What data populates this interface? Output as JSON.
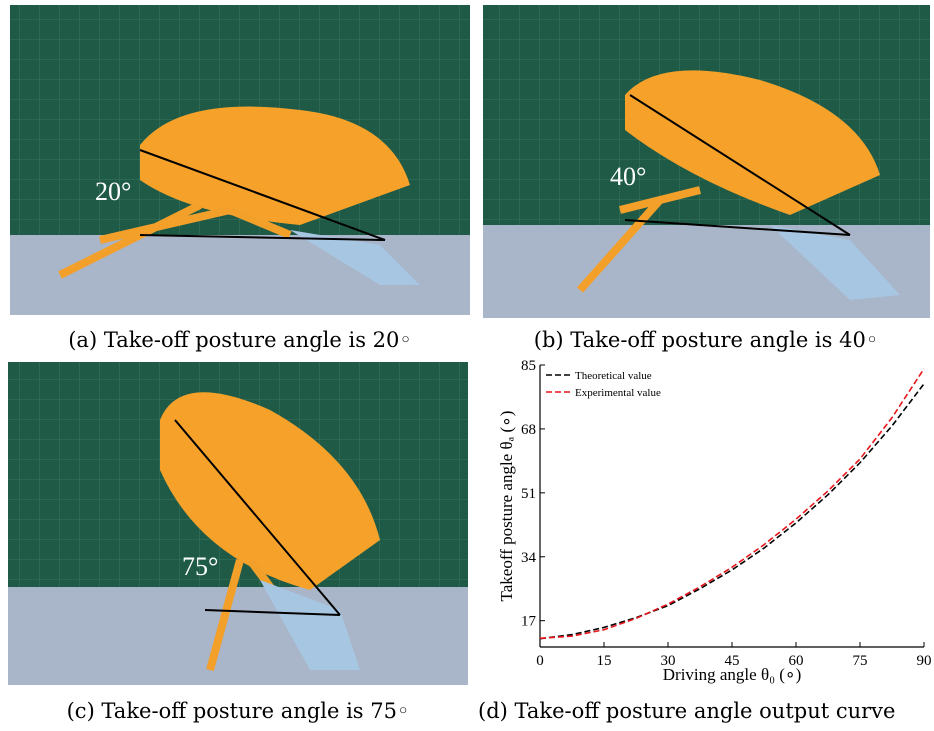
{
  "panels": [
    {
      "caption": "(a) Take-off posture angle is 20◦",
      "angle_label": "20°"
    },
    {
      "caption": "(b) Take-off posture angle is 40◦",
      "angle_label": "40°"
    },
    {
      "caption": "(c) Take-off posture angle is 75◦",
      "angle_label": "75°"
    },
    {
      "caption": "(d) Take-off posture angle output curve"
    }
  ],
  "chart_data": {
    "type": "line",
    "x_label": "Driving angle θ₀ (∘)",
    "y_label": "Takeoff posture angle θₐ (∘)",
    "x": [
      0,
      7.5,
      15,
      22.5,
      30,
      37.5,
      45,
      52.5,
      60,
      67.5,
      75,
      82.5,
      90
    ],
    "series": [
      {
        "name": "Theoretical value",
        "color": "#000000",
        "dashed": true,
        "values": [
          12.2,
          13.3,
          15.2,
          17.8,
          21,
          25.5,
          30.5,
          36.3,
          43,
          50.5,
          59,
          68.8,
          80
        ]
      },
      {
        "name": "Experimental value",
        "color": "#e8141a",
        "dashed": true,
        "values": [
          12.3,
          12.9,
          14.6,
          17.6,
          21.4,
          26,
          31.2,
          37.2,
          44,
          51.5,
          60,
          71,
          84
        ]
      }
    ],
    "xlim": [
      0,
      90
    ],
    "xticks": [
      0,
      15,
      30,
      45,
      60,
      75,
      90
    ],
    "ylim": [
      10,
      85
    ],
    "yticks": [
      17,
      34,
      51,
      68,
      85
    ],
    "legend": "top-left"
  }
}
